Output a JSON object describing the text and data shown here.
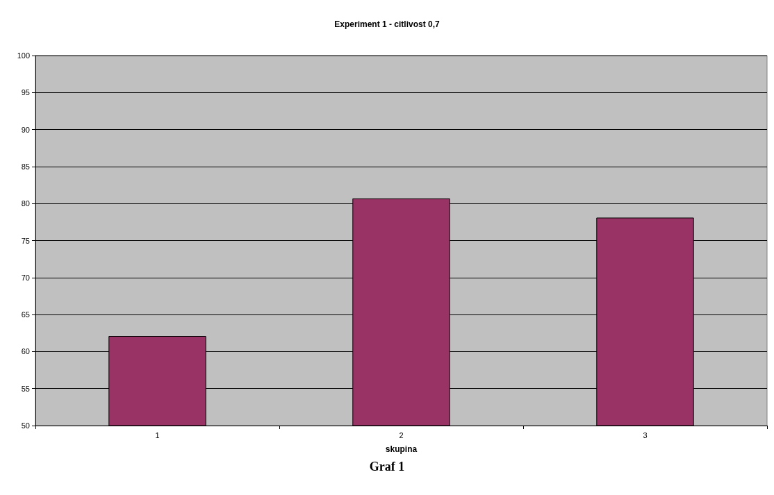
{
  "chart_data": {
    "type": "bar",
    "title": "Experiment 1 - citlivost 0,7",
    "xlabel": "skupina",
    "categories": [
      "1",
      "2",
      "3"
    ],
    "values": [
      62.1,
      80.7,
      78.1
    ],
    "color": "#993366",
    "ylim": [
      50,
      100
    ],
    "yticks": [
      50,
      55,
      60,
      65,
      70,
      75,
      80,
      85,
      90,
      95,
      100
    ],
    "grid": "y",
    "annotations": [
      "Graf 1"
    ]
  }
}
